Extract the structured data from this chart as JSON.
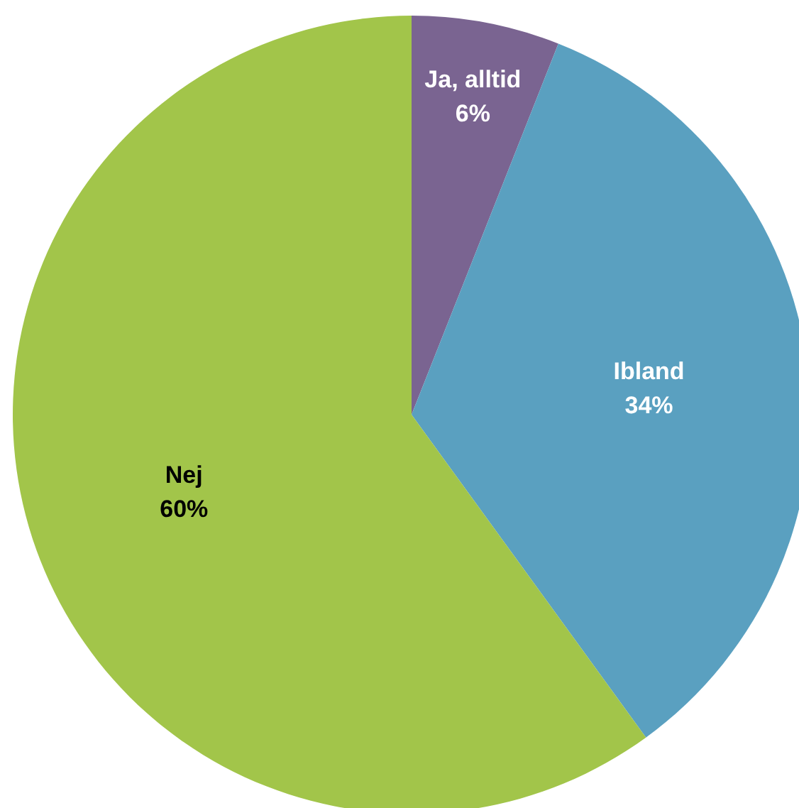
{
  "chart_data": {
    "type": "pie",
    "categories": [
      "Ja, alltid",
      "Ibland",
      "Nej"
    ],
    "values": [
      6,
      34,
      60
    ],
    "colors": [
      "#7a6491",
      "#5aa0c0",
      "#a2c54a"
    ],
    "value_labels": [
      "6%",
      "34%",
      "60%"
    ],
    "legend": false
  }
}
